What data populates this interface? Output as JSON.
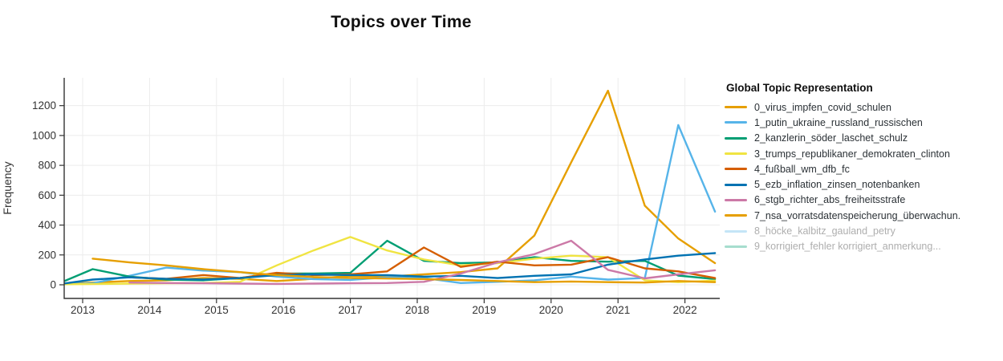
{
  "title": "Topics over Time",
  "legend": {
    "title": "Global Topic Representation"
  },
  "axes": {
    "x": {
      "ticks": [
        "2013",
        "2014",
        "2015",
        "2016",
        "2017",
        "2018",
        "2019",
        "2020",
        "2021",
        "2022"
      ]
    },
    "y": {
      "label": "Frequency",
      "ticks": [
        "0",
        "200",
        "400",
        "600",
        "800",
        "1000",
        "1200"
      ]
    }
  },
  "chart_data": {
    "type": "line",
    "title": "Topics over Time",
    "xlabel": "",
    "ylabel": "Frequency",
    "xlim": [
      2012.72,
      2022.55
    ],
    "ylim": [
      -90,
      1400
    ],
    "grid": true,
    "legend_position": "right",
    "x": [
      2012.62,
      2013.15,
      2013.7,
      2014.25,
      2014.8,
      2015.35,
      2015.9,
      2016.45,
      2017.0,
      2017.55,
      2018.1,
      2018.65,
      2019.2,
      2019.75,
      2020.3,
      2020.85,
      2021.4,
      2021.9,
      2022.45
    ],
    "series": [
      {
        "name": "0_virus_impfen_covid_schulen",
        "color": "#E69F00",
        "visible": true,
        "values": [
          5,
          15,
          25,
          30,
          45,
          40,
          25,
          40,
          60,
          55,
          70,
          85,
          110,
          330,
          820,
          1300,
          530,
          310,
          145
        ]
      },
      {
        "name": "1_putin_ukraine_russland_russischen",
        "color": "#56B4E9",
        "visible": true,
        "values": [
          2,
          10,
          60,
          115,
          95,
          85,
          55,
          38,
          33,
          50,
          45,
          12,
          20,
          30,
          55,
          35,
          45,
          1070,
          490
        ]
      },
      {
        "name": "2_kanzlerin_söder_laschet_schulz",
        "color": "#009E73",
        "visible": true,
        "values": [
          5,
          105,
          55,
          35,
          30,
          45,
          75,
          75,
          80,
          295,
          160,
          145,
          150,
          185,
          160,
          155,
          160,
          62,
          38
        ]
      },
      {
        "name": "3_trumps_republikaner_demokraten_clinton",
        "color": "#F0E442",
        "visible": true,
        "values": [
          3,
          5,
          8,
          10,
          12,
          20,
          130,
          230,
          320,
          230,
          170,
          130,
          145,
          175,
          195,
          185,
          30,
          18,
          28
        ]
      },
      {
        "name": "4_fußball_wm_dfb_fc",
        "color": "#D55E00",
        "visible": true,
        "values": [
          null,
          null,
          50,
          40,
          65,
          45,
          80,
          65,
          70,
          90,
          250,
          120,
          155,
          130,
          135,
          185,
          110,
          90,
          45
        ]
      },
      {
        "name": "5_ezb_inflation_zinsen_notenbanken",
        "color": "#0072B2",
        "visible": true,
        "values": [
          2,
          35,
          50,
          40,
          35,
          45,
          65,
          70,
          65,
          65,
          55,
          60,
          45,
          60,
          70,
          135,
          170,
          195,
          212
        ]
      },
      {
        "name": "6_stgb_richter_abs_freiheitsstrafe",
        "color": "#CC79A7",
        "visible": true,
        "values": [
          null,
          null,
          15,
          12,
          10,
          8,
          6,
          8,
          10,
          12,
          20,
          75,
          150,
          205,
          295,
          100,
          43,
          70,
          97
        ]
      },
      {
        "name": "7_nsa_vorratsdatenspeicherung_überwachun.",
        "color": "#E69F00",
        "visible": true,
        "values": [
          null,
          175,
          150,
          130,
          105,
          85,
          65,
          52,
          46,
          42,
          38,
          32,
          25,
          18,
          22,
          18,
          15,
          25,
          18
        ]
      },
      {
        "name": "8_höcke_kalbitz_gauland_petry",
        "color": "#56B4E9",
        "visible": false,
        "values": []
      },
      {
        "name": "9_korrigiert_fehler korrigiert_anmerkung...",
        "color": "#009E73",
        "visible": false,
        "values": []
      }
    ]
  }
}
